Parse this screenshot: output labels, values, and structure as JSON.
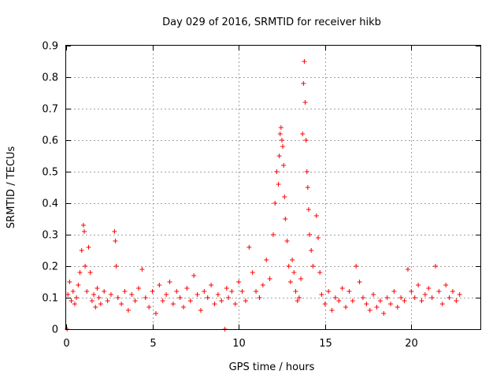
{
  "chart_data": {
    "type": "scatter",
    "title": "Day 029 of 2016, SRMTID for receiver hikb",
    "xlabel": "GPS time / hours",
    "ylabel": "SRMTID / TECUs",
    "xlim": [
      0,
      24
    ],
    "ylim": [
      0,
      0.9
    ],
    "x_ticks": [
      0,
      5,
      10,
      15,
      20
    ],
    "x_tick_labels": [
      "0",
      "5",
      "10",
      "15",
      "20"
    ],
    "y_ticks": [
      0,
      0.1,
      0.2,
      0.3,
      0.4,
      0.5,
      0.6,
      0.7,
      0.8,
      0.9
    ],
    "y_tick_labels": [
      "0",
      "0.1",
      "0.2",
      "0.3",
      "0.4",
      "0.5",
      "0.6",
      "0.7",
      "0.8",
      "0.9"
    ],
    "grid": true,
    "marker": "plus",
    "marker_color": "#ff0000",
    "series": [
      {
        "name": "hikb",
        "x": [
          0.05,
          0.1,
          0.2,
          0.3,
          0.4,
          0.5,
          0.6,
          0.7,
          0.8,
          0.9,
          1.0,
          1.05,
          1.1,
          1.2,
          1.3,
          1.4,
          1.5,
          1.6,
          1.7,
          1.8,
          1.9,
          2.0,
          2.2,
          2.4,
          2.6,
          2.8,
          2.85,
          2.9,
          3.0,
          3.2,
          3.4,
          3.6,
          3.8,
          4.0,
          4.2,
          4.4,
          4.6,
          4.8,
          5.0,
          5.2,
          5.4,
          5.6,
          5.8,
          6.0,
          6.2,
          6.4,
          6.6,
          6.8,
          7.0,
          7.2,
          7.4,
          7.6,
          7.8,
          8.0,
          8.2,
          8.4,
          8.6,
          8.8,
          9.0,
          9.2,
          9.3,
          9.4,
          9.6,
          9.8,
          10.0,
          10.2,
          10.4,
          10.6,
          10.8,
          11.0,
          11.2,
          11.4,
          11.6,
          11.8,
          12.0,
          12.1,
          12.2,
          12.3,
          12.35,
          12.4,
          12.45,
          12.5,
          12.55,
          12.6,
          12.65,
          12.7,
          12.8,
          12.9,
          13.0,
          13.1,
          13.2,
          13.3,
          13.4,
          13.5,
          13.6,
          13.7,
          13.75,
          13.8,
          13.85,
          13.9,
          13.95,
          14.0,
          14.05,
          14.1,
          14.2,
          14.3,
          14.5,
          14.6,
          14.7,
          14.8,
          15.0,
          15.2,
          15.4,
          15.6,
          15.8,
          16.0,
          16.2,
          16.4,
          16.6,
          16.8,
          17.0,
          17.2,
          17.4,
          17.6,
          17.8,
          18.0,
          18.2,
          18.4,
          18.6,
          18.8,
          19.0,
          19.2,
          19.4,
          19.6,
          19.8,
          20.0,
          20.2,
          20.4,
          20.6,
          20.8,
          21.0,
          21.2,
          21.4,
          21.6,
          21.8,
          22.0,
          22.2,
          22.4,
          22.6,
          22.8
        ],
        "y": [
          0.0,
          0.11,
          0.15,
          0.09,
          0.12,
          0.08,
          0.1,
          0.14,
          0.18,
          0.25,
          0.33,
          0.31,
          0.2,
          0.12,
          0.26,
          0.18,
          0.09,
          0.11,
          0.07,
          0.13,
          0.1,
          0.08,
          0.12,
          0.09,
          0.11,
          0.31,
          0.28,
          0.2,
          0.1,
          0.08,
          0.12,
          0.06,
          0.11,
          0.09,
          0.13,
          0.19,
          0.1,
          0.07,
          0.12,
          0.05,
          0.14,
          0.09,
          0.11,
          0.15,
          0.08,
          0.12,
          0.1,
          0.07,
          0.13,
          0.09,
          0.17,
          0.11,
          0.06,
          0.12,
          0.1,
          0.14,
          0.08,
          0.11,
          0.09,
          0.0,
          0.13,
          0.1,
          0.12,
          0.08,
          0.15,
          0.12,
          0.09,
          0.26,
          0.18,
          0.12,
          0.1,
          0.14,
          0.22,
          0.16,
          0.3,
          0.4,
          0.5,
          0.46,
          0.55,
          0.62,
          0.64,
          0.6,
          0.58,
          0.52,
          0.42,
          0.35,
          0.28,
          0.2,
          0.15,
          0.22,
          0.18,
          0.12,
          0.09,
          0.1,
          0.16,
          0.62,
          0.78,
          0.85,
          0.72,
          0.6,
          0.5,
          0.45,
          0.38,
          0.3,
          0.25,
          0.2,
          0.36,
          0.29,
          0.18,
          0.11,
          0.08,
          0.12,
          0.06,
          0.1,
          0.09,
          0.13,
          0.07,
          0.12,
          0.09,
          0.2,
          0.15,
          0.1,
          0.08,
          0.06,
          0.11,
          0.07,
          0.09,
          0.05,
          0.1,
          0.08,
          0.12,
          0.07,
          0.1,
          0.09,
          0.19,
          0.12,
          0.1,
          0.14,
          0.09,
          0.11,
          0.13,
          0.1,
          0.2,
          0.12,
          0.08,
          0.14,
          0.1,
          0.12,
          0.09,
          0.11
        ]
      }
    ]
  }
}
